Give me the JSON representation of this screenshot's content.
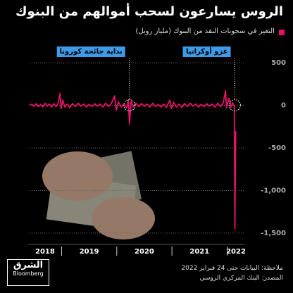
{
  "chart_data": {
    "type": "line",
    "title": "الروس يسارعون لسحب أموالهم من البنوك",
    "x": [
      2018.42,
      2018.46,
      2018.5,
      2018.54,
      2018.58,
      2018.62,
      2018.66,
      2018.7,
      2018.74,
      2018.78,
      2018.82,
      2018.86,
      2018.9,
      2018.94,
      2018.97,
      2018.99,
      2019.02,
      2019.06,
      2019.1,
      2019.15,
      2019.2,
      2019.25,
      2019.3,
      2019.35,
      2019.4,
      2019.45,
      2019.5,
      2019.55,
      2019.6,
      2019.65,
      2019.7,
      2019.75,
      2019.8,
      2019.85,
      2019.9,
      2019.96,
      2019.99,
      2020.03,
      2020.08,
      2020.13,
      2020.18,
      2020.21,
      2020.23,
      2020.26,
      2020.3,
      2020.35,
      2020.4,
      2020.45,
      2020.5,
      2020.55,
      2020.6,
      2020.65,
      2020.7,
      2020.75,
      2020.8,
      2020.85,
      2020.9,
      2020.96,
      2020.99,
      2021.03,
      2021.08,
      2021.13,
      2021.18,
      2021.23,
      2021.28,
      2021.33,
      2021.38,
      2021.43,
      2021.48,
      2021.53,
      2021.58,
      2021.63,
      2021.68,
      2021.73,
      2021.78,
      2021.83,
      2021.88,
      2021.93,
      2021.97,
      2021.99,
      2022.03,
      2022.07,
      2022.1,
      2022.13,
      2022.14,
      2022.155
    ],
    "series": [
      {
        "name": "التغير في سحوبات النقد من البنوك (مليار روبل)",
        "color": "#e8106a",
        "values": [
          0,
          15,
          -10,
          20,
          -15,
          10,
          -20,
          25,
          -10,
          15,
          -20,
          20,
          -15,
          30,
          140,
          -40,
          60,
          -20,
          15,
          -25,
          20,
          -15,
          25,
          -10,
          15,
          -20,
          10,
          -15,
          20,
          -10,
          15,
          -20,
          25,
          -15,
          20,
          110,
          -60,
          40,
          -20,
          15,
          -30,
          60,
          -220,
          50,
          -20,
          25,
          -15,
          20,
          -10,
          15,
          -20,
          25,
          -15,
          10,
          -20,
          15,
          -25,
          60,
          -40,
          35,
          -20,
          15,
          -25,
          20,
          -15,
          25,
          -10,
          15,
          -20,
          10,
          -15,
          20,
          -10,
          15,
          -20,
          25,
          -15,
          30,
          170,
          -30,
          80,
          -20,
          30,
          -10,
          -1450,
          -300
        ]
      }
    ],
    "xlim": [
      2018.42,
      2022.3
    ],
    "xticks": [
      {
        "value": 2018.7,
        "label": "2018"
      },
      {
        "value": 2019.5,
        "label": "2019"
      },
      {
        "value": 2020.5,
        "label": "2020"
      },
      {
        "value": 2021.5,
        "label": "2021"
      },
      {
        "value": 2022.16,
        "label": "2022"
      }
    ],
    "xticks_minor": [
      2019,
      2020,
      2021,
      2022
    ],
    "ylim": [
      -1600,
      600
    ],
    "yticks": [
      500,
      0,
      {
        "value": -500,
        "label": "-500"
      },
      {
        "value": -1000,
        "label": "-1,000"
      },
      {
        "value": -1500,
        "label": "-1,500"
      }
    ],
    "grid": true,
    "annotations": [
      {
        "text": "بداية جائحة كورونا",
        "x": 2020.23
      },
      {
        "text": "غزو أوكرانيا",
        "x": 2022.14
      }
    ],
    "notes": [
      "ملاحظة: البيانات حتى 24 فبراير 2022",
      "المصدر: البنك المركزي الروسي"
    ],
    "logo": {
      "name": "الشرق",
      "sub": "Bloomberg"
    }
  }
}
